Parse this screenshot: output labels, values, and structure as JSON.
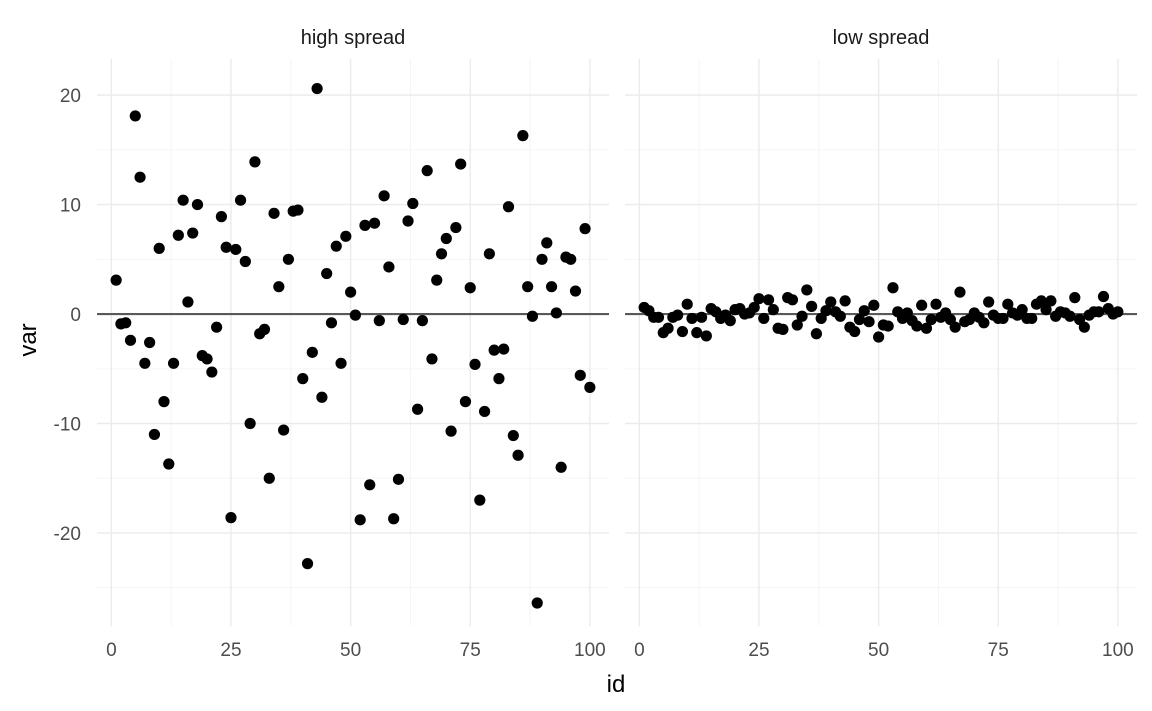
{
  "chart_data": {
    "type": "scatter",
    "xlabel": "id",
    "ylabel": "var",
    "xlim": [
      -3,
      104
    ],
    "ylim": [
      -28.5,
      23.3
    ],
    "x_ticks": [
      0,
      25,
      50,
      75,
      100
    ],
    "x_tick_labels": [
      "0",
      "25",
      "50",
      "75",
      "100"
    ],
    "y_ticks": [
      -20,
      -10,
      0,
      10,
      20
    ],
    "y_tick_labels": [
      "-20",
      "-10",
      "0",
      "10",
      "20"
    ],
    "hline": 0,
    "grid": true,
    "legend": "none",
    "point_color": "#000000",
    "zero_line_color": "#595959",
    "panels": [
      {
        "label": "high spread",
        "series": [
          {
            "x": [
              1,
              2,
              3,
              4,
              5,
              6,
              7,
              8,
              9,
              10,
              11,
              12,
              13,
              14,
              15,
              16,
              17,
              18,
              19,
              20,
              21,
              22,
              23,
              24,
              25,
              26,
              27,
              28,
              29,
              30,
              31,
              32,
              33,
              34,
              35,
              36,
              37,
              38,
              39,
              40,
              41,
              42,
              43,
              44,
              45,
              46,
              47,
              48,
              49,
              50,
              51,
              52,
              53,
              54,
              55,
              56,
              57,
              58,
              59,
              60,
              61,
              62,
              63,
              64,
              65,
              66,
              67,
              68,
              69,
              70,
              71,
              72,
              73,
              74,
              75,
              76,
              77,
              78,
              79,
              80,
              81,
              82,
              83,
              84,
              85,
              86,
              87,
              88,
              89,
              90,
              91,
              92,
              93,
              94,
              95,
              96,
              97,
              98,
              99,
              100
            ],
            "y": [
              3.1,
              -0.9,
              -0.8,
              -2.4,
              18.1,
              12.5,
              -4.5,
              -2.6,
              -11.0,
              6.0,
              -8.0,
              -13.7,
              -4.5,
              7.2,
              10.4,
              1.1,
              7.4,
              10.0,
              -3.8,
              -4.1,
              -5.3,
              -1.2,
              8.9,
              6.1,
              -18.6,
              5.9,
              10.4,
              4.8,
              -10.0,
              13.9,
              -1.8,
              -1.4,
              -15.0,
              9.2,
              2.5,
              -10.6,
              5.0,
              9.4,
              9.5,
              -5.9,
              -22.8,
              -3.5,
              20.6,
              -7.6,
              3.7,
              -0.8,
              6.2,
              -4.5,
              7.1,
              2.0,
              -0.1,
              -18.8,
              8.1,
              -15.6,
              8.3,
              -0.6,
              10.8,
              4.3,
              -18.7,
              -15.1,
              -0.5,
              8.5,
              10.1,
              -8.7,
              -0.6,
              13.1,
              -4.1,
              3.1,
              5.5,
              6.9,
              -10.7,
              7.9,
              13.7,
              -8.0,
              2.4,
              -4.6,
              -17.0,
              -8.9,
              5.5,
              -3.3,
              -5.9,
              -3.2,
              9.8,
              -11.1,
              -12.9,
              16.3,
              2.5,
              -0.2,
              -26.4,
              5.0,
              6.5,
              2.5,
              0.1,
              -14.0,
              5.2,
              5.0,
              2.1,
              -5.6,
              7.8,
              -6.7
            ]
          }
        ]
      },
      {
        "label": "low spread",
        "series": [
          {
            "x": [
              1,
              2,
              3,
              4,
              5,
              6,
              7,
              8,
              9,
              10,
              11,
              12,
              13,
              14,
              15,
              16,
              17,
              18,
              19,
              20,
              21,
              22,
              23,
              24,
              25,
              26,
              27,
              28,
              29,
              30,
              31,
              32,
              33,
              34,
              35,
              36,
              37,
              38,
              39,
              40,
              41,
              42,
              43,
              44,
              45,
              46,
              47,
              48,
              49,
              50,
              51,
              52,
              53,
              54,
              55,
              56,
              57,
              58,
              59,
              60,
              61,
              62,
              63,
              64,
              65,
              66,
              67,
              68,
              69,
              70,
              71,
              72,
              73,
              74,
              75,
              76,
              77,
              78,
              79,
              80,
              81,
              82,
              83,
              84,
              85,
              86,
              87,
              88,
              89,
              90,
              91,
              92,
              93,
              94,
              95,
              96,
              97,
              98,
              99,
              100
            ],
            "y": [
              0.6,
              0.3,
              -0.3,
              -0.3,
              -1.7,
              -1.3,
              -0.3,
              -0.1,
              -1.6,
              0.9,
              -0.4,
              -1.7,
              -0.3,
              -2.0,
              0.5,
              0.2,
              -0.4,
              -0.1,
              -0.6,
              0.4,
              0.5,
              0.0,
              0.1,
              0.6,
              1.4,
              -0.4,
              1.3,
              0.4,
              -1.3,
              -1.4,
              1.5,
              1.3,
              -1.0,
              -0.2,
              2.2,
              0.7,
              -1.8,
              -0.4,
              0.3,
              1.1,
              0.2,
              -0.2,
              1.2,
              -1.2,
              -1.6,
              -0.5,
              0.3,
              -0.7,
              0.8,
              -2.1,
              -1.0,
              -1.1,
              2.4,
              0.2,
              -0.4,
              0.1,
              -0.6,
              -1.1,
              0.8,
              -1.3,
              -0.5,
              0.9,
              -0.3,
              0.1,
              -0.5,
              -1.2,
              2.0,
              -0.7,
              -0.5,
              0.1,
              -0.3,
              -0.8,
              1.1,
              -0.1,
              -0.4,
              -0.4,
              0.9,
              0.1,
              -0.1,
              0.4,
              -0.4,
              -0.4,
              0.9,
              1.2,
              0.4,
              1.2,
              -0.2,
              0.2,
              0.1,
              -0.2,
              1.5,
              -0.5,
              -1.2,
              -0.1,
              0.2,
              0.2,
              1.6,
              0.5,
              0.0,
              0.2
            ]
          }
        ]
      }
    ]
  }
}
